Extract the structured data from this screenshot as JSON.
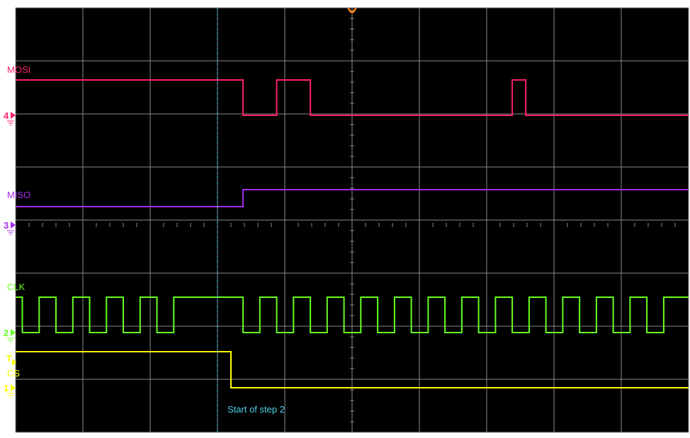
{
  "chart_data": {
    "type": "line",
    "title": "",
    "xlabel": "",
    "ylabel": "",
    "grid": true,
    "x_divisions": 10,
    "y_divisions": 8,
    "colors": {
      "background": "#000000",
      "grid": "#8a8a8a",
      "MOSI": "#ff1f6e",
      "MISO": "#a62cf0",
      "CLK": "#66ff22",
      "CS": "#ffff00",
      "cursor": "#4fd3e8",
      "trigger_position": "#ff8c1a"
    },
    "series": [
      {
        "name": "MOSI",
        "channel": "4",
        "x": [
          0.0,
          3.38,
          3.38,
          3.88,
          3.88,
          4.38,
          4.38,
          7.38,
          7.38,
          7.58,
          7.58,
          10.0
        ],
        "y": [
          1,
          1,
          0,
          0,
          1,
          1,
          0,
          0,
          1,
          1,
          0,
          0
        ]
      },
      {
        "name": "MISO",
        "channel": "3",
        "x": [
          0.0,
          3.38,
          3.38,
          10.0
        ],
        "y": [
          0,
          0,
          1,
          1
        ]
      },
      {
        "name": "CLK",
        "channel": "2",
        "x": [
          0.0,
          0.1,
          0.1,
          0.35,
          0.35,
          0.6,
          0.6,
          0.85,
          0.85,
          1.1,
          1.1,
          1.35,
          1.35,
          1.6,
          1.6,
          1.85,
          1.85,
          2.1,
          2.1,
          2.35,
          2.35,
          3.38,
          3.38,
          3.63,
          3.63,
          3.88,
          3.88,
          4.13,
          4.13,
          4.38,
          4.38,
          4.63,
          4.63,
          4.88,
          4.88,
          5.13,
          5.13,
          5.38,
          5.38,
          5.63,
          5.63,
          5.88,
          5.88,
          6.13,
          6.13,
          6.38,
          6.38,
          6.63,
          6.63,
          6.88,
          6.88,
          7.13,
          7.13,
          7.38,
          7.38,
          7.63,
          7.63,
          7.88,
          7.88,
          8.13,
          8.13,
          8.38,
          8.38,
          8.63,
          8.63,
          8.88,
          8.88,
          9.13,
          9.13,
          9.38,
          9.38,
          9.63,
          9.63,
          10.0
        ],
        "y": [
          1,
          1,
          0,
          0,
          1,
          1,
          0,
          0,
          1,
          1,
          0,
          0,
          1,
          1,
          0,
          0,
          1,
          1,
          0,
          0,
          1,
          1,
          0,
          0,
          1,
          1,
          0,
          0,
          1,
          1,
          0,
          0,
          1,
          1,
          0,
          0,
          1,
          1,
          0,
          0,
          1,
          1,
          0,
          0,
          1,
          1,
          0,
          0,
          1,
          1,
          0,
          0,
          1,
          1,
          0,
          0,
          1,
          1,
          0,
          0,
          1,
          1,
          0,
          0,
          1,
          1,
          0,
          0,
          1,
          1,
          0,
          0,
          1,
          1
        ]
      },
      {
        "name": "CS",
        "channel": "1",
        "x": [
          0.0,
          3.2,
          3.2,
          10.0
        ],
        "y": [
          1,
          1,
          0,
          0
        ]
      }
    ],
    "cursor": {
      "x": 3.0,
      "label": "Start of step 2"
    },
    "trigger_position": 5.0,
    "trigger_marker": "T"
  }
}
